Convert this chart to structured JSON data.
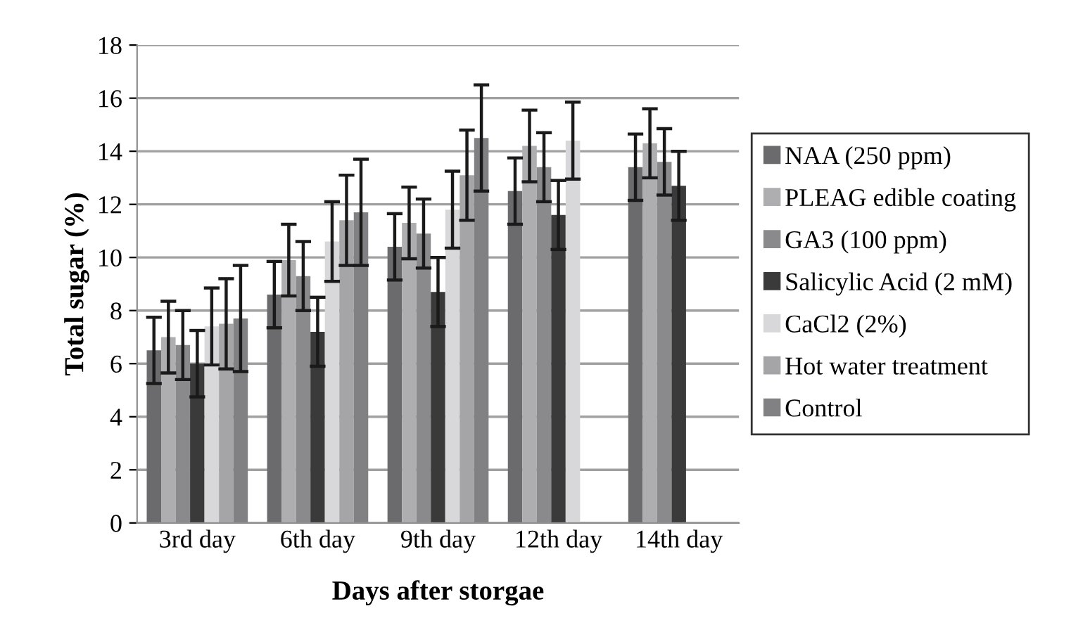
{
  "chart_data": {
    "type": "bar",
    "xlabel": "Days after storgae",
    "ylabel": "Total sugar (%)",
    "categories": [
      "3rd day",
      "6th day",
      "9th day",
      "12th day",
      "14th day"
    ],
    "series": [
      {
        "name": "NAA (250 ppm)",
        "color": "#6b6b6e",
        "values": [
          6.5,
          8.6,
          10.4,
          12.5,
          13.4
        ],
        "errors": [
          1.25,
          1.25,
          1.25,
          1.25,
          1.25
        ]
      },
      {
        "name": "PLEAG edible coating",
        "color": "#aeaeb0",
        "values": [
          7.0,
          9.9,
          11.3,
          14.2,
          14.3
        ],
        "errors": [
          1.35,
          1.35,
          1.35,
          1.35,
          1.3
        ]
      },
      {
        "name": "GA3 (100 ppm)",
        "color": "#8a8a8c",
        "values": [
          6.7,
          9.3,
          10.9,
          13.4,
          13.6
        ],
        "errors": [
          1.3,
          1.3,
          1.3,
          1.3,
          1.25
        ]
      },
      {
        "name": "Salicylic Acid (2 mM)",
        "color": "#3a3a3a",
        "values": [
          6.0,
          7.2,
          8.7,
          11.6,
          12.7
        ],
        "errors": [
          1.25,
          1.3,
          1.3,
          1.3,
          1.3
        ]
      },
      {
        "name": "CaCl2 (2%)",
        "color": "#d8d8da",
        "values": [
          7.4,
          10.6,
          11.8,
          14.4,
          null
        ],
        "errors": [
          1.45,
          1.5,
          1.45,
          1.45,
          null
        ]
      },
      {
        "name": "Hot water treatment",
        "color": "#a5a5a7",
        "values": [
          7.5,
          11.4,
          13.1,
          null,
          null
        ],
        "errors": [
          1.7,
          1.7,
          1.7,
          null,
          null
        ]
      },
      {
        "name": "Control",
        "color": "#818183",
        "values": [
          7.7,
          11.7,
          14.5,
          null,
          null
        ],
        "errors": [
          2.0,
          2.0,
          2.0,
          null,
          null
        ]
      }
    ],
    "ylim": [
      0,
      18
    ],
    "yticks": [
      0,
      2,
      4,
      6,
      8,
      10,
      12,
      14,
      16,
      18
    ],
    "grid": "y",
    "legend": "right"
  }
}
